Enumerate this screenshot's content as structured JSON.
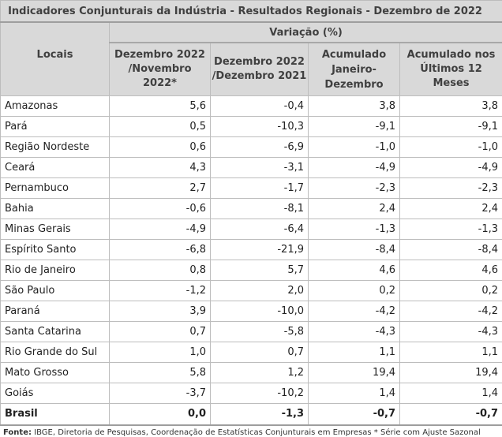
{
  "title": "Indicadores Conjunturais da Indústria  -  Resultados Regionais  -  Dezembro de 2022",
  "header": {
    "locais": "Locais",
    "variacao": "Variação (%)",
    "columns": [
      "Dezembro 2022\n/Novembro 2022*",
      "Dezembro 2022\n/Dezembro 2021",
      "Acumulado\nJaneiro-\nDezembro",
      "Acumulado nos\nÚltimos 12 Meses"
    ]
  },
  "rows": [
    {
      "local": "Amazonas",
      "v": [
        "5,6",
        "-0,4",
        "3,8",
        "3,8"
      ]
    },
    {
      "local": "Pará",
      "v": [
        "0,5",
        "-10,3",
        "-9,1",
        "-9,1"
      ]
    },
    {
      "local": "Região Nordeste",
      "v": [
        "0,6",
        "-6,9",
        "-1,0",
        "-1,0"
      ]
    },
    {
      "local": "Ceará",
      "v": [
        "4,3",
        "-3,1",
        "-4,9",
        "-4,9"
      ]
    },
    {
      "local": "Pernambuco",
      "v": [
        "2,7",
        "-1,7",
        "-2,3",
        "-2,3"
      ]
    },
    {
      "local": "Bahia",
      "v": [
        "-0,6",
        "-8,1",
        "2,4",
        "2,4"
      ]
    },
    {
      "local": "Minas Gerais",
      "v": [
        "-4,9",
        "-6,4",
        "-1,3",
        "-1,3"
      ]
    },
    {
      "local": "Espírito Santo",
      "v": [
        "-6,8",
        "-21,9",
        "-8,4",
        "-8,4"
      ]
    },
    {
      "local": "Rio de Janeiro",
      "v": [
        "0,8",
        "5,7",
        "4,6",
        "4,6"
      ]
    },
    {
      "local": "São Paulo",
      "v": [
        "-1,2",
        "2,0",
        "0,2",
        "0,2"
      ]
    },
    {
      "local": "Paraná",
      "v": [
        "3,9",
        "-10,0",
        "-4,2",
        "-4,2"
      ]
    },
    {
      "local": "Santa Catarina",
      "v": [
        "0,7",
        "-5,8",
        "-4,3",
        "-4,3"
      ]
    },
    {
      "local": "Rio Grande do Sul",
      "v": [
        "1,0",
        "0,7",
        "1,1",
        "1,1"
      ]
    },
    {
      "local": "Mato Grosso",
      "v": [
        "5,8",
        "1,2",
        "19,4",
        "19,4"
      ]
    },
    {
      "local": "Goiás",
      "v": [
        "-3,7",
        "-10,2",
        "1,4",
        "1,4"
      ]
    }
  ],
  "total": {
    "local": "Brasil",
    "v": [
      "0,0",
      "-1,3",
      "-0,7",
      "-0,7"
    ]
  },
  "footer": {
    "label": "Fonte:",
    "text": " IBGE, Diretoria de Pesquisas, Coordenação de Estatísticas Conjunturais em Empresas  * Série com Ajuste Sazonal"
  }
}
